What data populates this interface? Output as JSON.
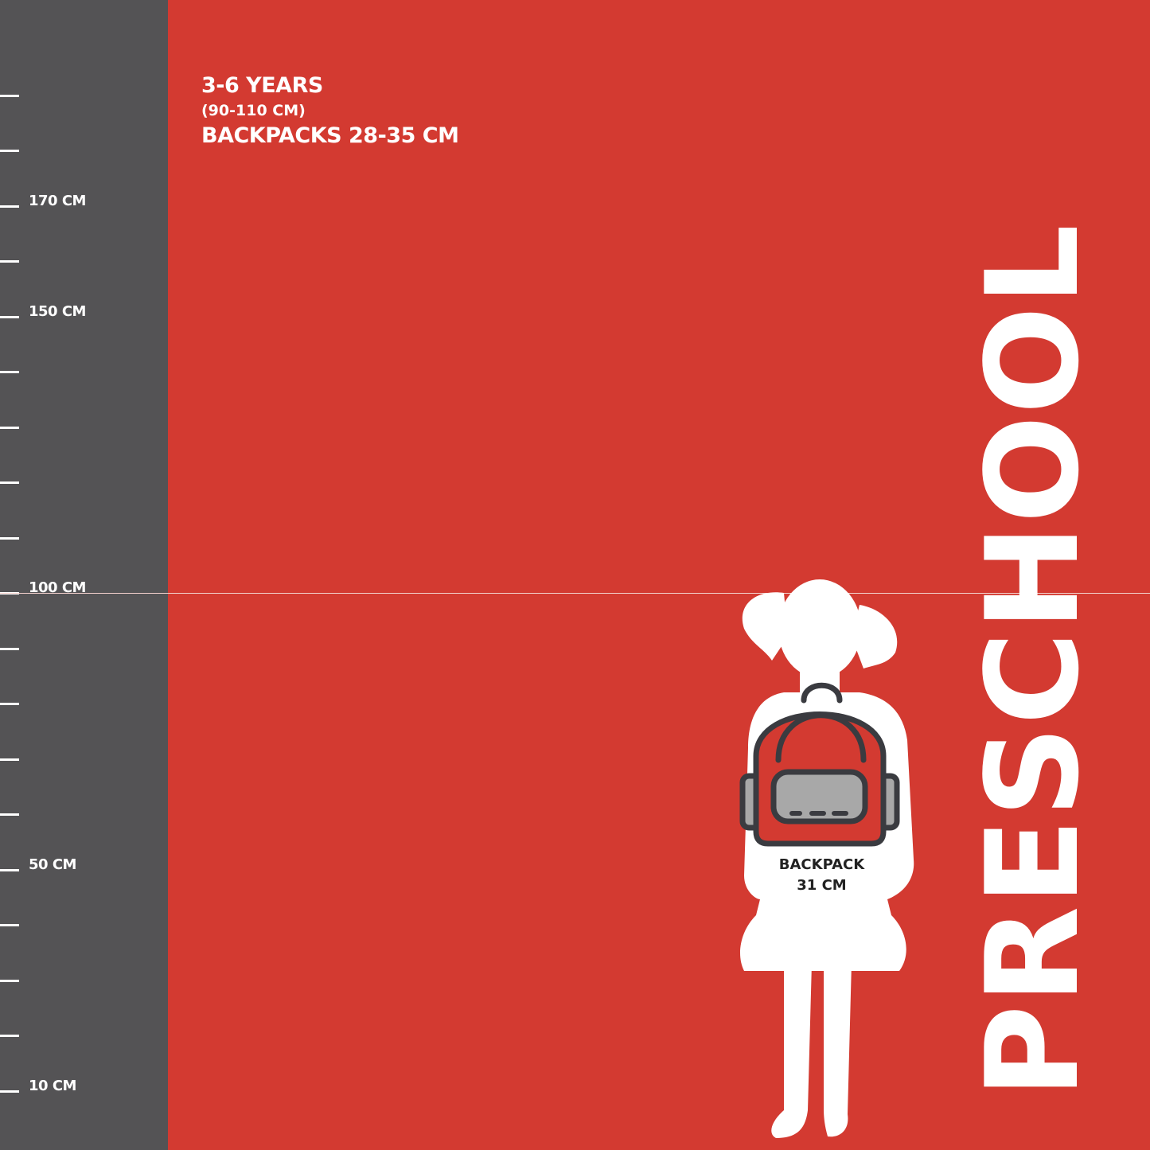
{
  "ruler": {
    "labels": [
      {
        "value": 170,
        "text": "170 CM"
      },
      {
        "value": 150,
        "text": "150 CM"
      },
      {
        "value": 100,
        "text": "100 CM"
      },
      {
        "value": 50,
        "text": "50 CM"
      },
      {
        "value": 10,
        "text": "10 CM"
      }
    ]
  },
  "info": {
    "age": "3-6 YEARS",
    "height_range": "(90-110 CM)",
    "backpack_range": "BACKPACKS 28-35 CM"
  },
  "title": "PRESCHOOL",
  "backpack": {
    "line1": "BACKPACK",
    "line2": "31 CM"
  },
  "colors": {
    "background": "#d33a31",
    "ruler": "#545355",
    "backpack_outline": "#3a3b40",
    "pocket": "#a8a8a8"
  }
}
